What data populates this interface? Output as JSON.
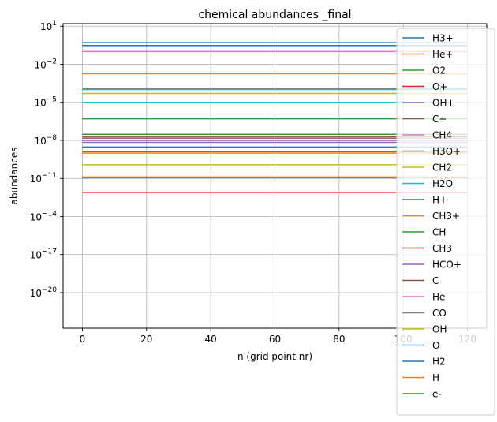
{
  "chart_data": {
    "type": "line",
    "title": "chemical abundances _final",
    "xlabel": "n (grid point nr)",
    "ylabel": "abundances",
    "x_range": [
      0,
      120
    ],
    "xlim": [
      -6,
      126
    ],
    "ylim_log10": [
      -22.8,
      1.2
    ],
    "yscale": "log",
    "grid": true,
    "legend_position": "right",
    "x_ticks": [
      {
        "value": 0,
        "label": "0"
      },
      {
        "value": 20,
        "label": "20"
      },
      {
        "value": 40,
        "label": "40"
      },
      {
        "value": 60,
        "label": "60"
      },
      {
        "value": 80,
        "label": "80"
      },
      {
        "value": 100,
        "label": "100"
      },
      {
        "value": 120,
        "label": "120"
      }
    ],
    "y_ticks": [
      {
        "exp": 1,
        "label": "10",
        "sup": "1"
      },
      {
        "exp": -2,
        "label": "10",
        "sup": "−2"
      },
      {
        "exp": -5,
        "label": "10",
        "sup": "−5"
      },
      {
        "exp": -8,
        "label": "10",
        "sup": "−8"
      },
      {
        "exp": -11,
        "label": "10",
        "sup": "−11"
      },
      {
        "exp": -14,
        "label": "10",
        "sup": "−14"
      },
      {
        "exp": -17,
        "label": "10",
        "sup": "−17"
      },
      {
        "exp": -20,
        "label": "10",
        "sup": "−20"
      }
    ],
    "series": [
      {
        "name": "H3+",
        "color": "#1f77b4",
        "value": 0.3
      },
      {
        "name": "He+",
        "color": "#ff7f0e",
        "value": 0.0018
      },
      {
        "name": "O2",
        "color": "#2ca02c",
        "value": 3e-08
      },
      {
        "name": "O+",
        "color": "#d62728",
        "value": 8e-13
      },
      {
        "name": "OH+",
        "color": "#9467bd",
        "value": 7e-09
      },
      {
        "name": "C+",
        "color": "#8c564b",
        "value": 1.5e-08
      },
      {
        "name": "CH4",
        "color": "#e377c2",
        "value": 1e-08
      },
      {
        "name": "H3O+",
        "color": "#7f7f7f",
        "value": 1.1e-11
      },
      {
        "name": "CH2",
        "color": "#bcbd22",
        "value": 1.2e-10
      },
      {
        "name": "H2O",
        "color": "#17becf",
        "value": 1e-05
      },
      {
        "name": "H+",
        "color": "#1f77b4",
        "value": 3e-09
      },
      {
        "name": "CH3+",
        "color": "#ff7f0e",
        "value": 1.3e-11
      },
      {
        "name": "CH",
        "color": "#2ca02c",
        "value": 1.3e-09
      },
      {
        "name": "CH3",
        "color": "#d62728",
        "value": 2e-08
      },
      {
        "name": "HCO+",
        "color": "#9467bd",
        "value": 1e-08
      },
      {
        "name": "C",
        "color": "#8c564b",
        "value": 2e-08
      },
      {
        "name": "He",
        "color": "#e377c2",
        "value": 0.1
      },
      {
        "name": "CO",
        "color": "#7f7f7f",
        "value": 0.00012
      },
      {
        "name": "OH",
        "color": "#bcbd22",
        "value": 5e-05
      },
      {
        "name": "O",
        "color": "#17becf",
        "value": 0.0001
      },
      {
        "name": "H2",
        "color": "#1f77b4",
        "value": 0.5
      },
      {
        "name": "H",
        "color": "#ff7f0e",
        "value": 1e-09
      },
      {
        "name": "e-",
        "color": "#2ca02c",
        "value": 5e-07
      }
    ]
  }
}
